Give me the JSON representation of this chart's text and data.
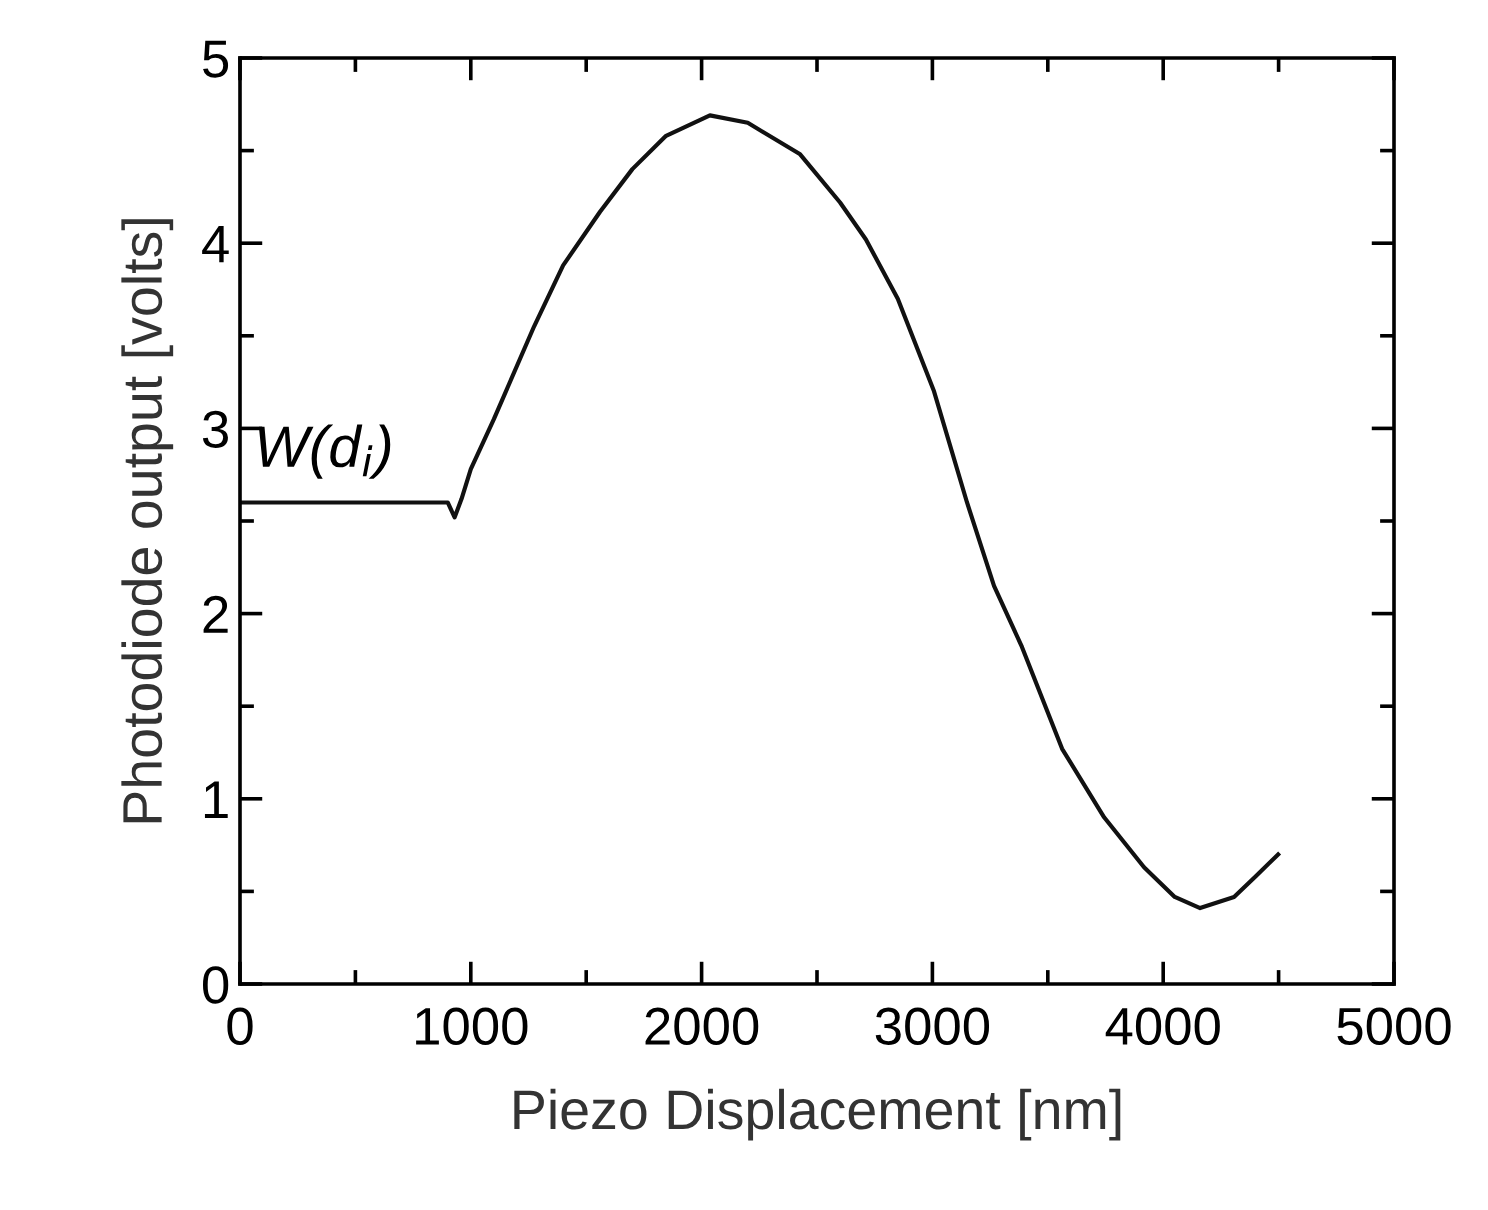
{
  "chart_data": {
    "type": "line",
    "xlabel": "Piezo Displacement [nm]",
    "ylabel": "Photodiode output [volts]",
    "x": [
      0,
      500,
      900,
      930,
      960,
      1000,
      1100,
      1274,
      1400,
      1560,
      1700,
      1846,
      2036,
      2200,
      2427,
      2600,
      2712,
      2850,
      3007,
      3150,
      3267,
      3388,
      3562,
      3744,
      3917,
      4050,
      4160,
      4307,
      4400,
      4498
    ],
    "series": [
      {
        "color": "#111111",
        "values": [
          2.6,
          2.6,
          2.6,
          2.52,
          2.62,
          2.78,
          3.05,
          3.55,
          3.88,
          4.17,
          4.4,
          4.58,
          4.69,
          4.65,
          4.48,
          4.22,
          4.02,
          3.7,
          3.2,
          2.6,
          2.15,
          1.82,
          1.27,
          0.9,
          0.63,
          0.47,
          0.41,
          0.47,
          0.58,
          0.7
        ]
      }
    ],
    "xlim": [
      0,
      5000
    ],
    "xticks": [
      0,
      1000,
      2000,
      3000,
      4000,
      5000
    ],
    "ylim": [
      0,
      5
    ],
    "yticks": [
      0,
      1,
      2,
      3,
      4,
      5
    ],
    "annotations": [
      "W(d$_{i}$)"
    ],
    "grid": false,
    "legend": false,
    "marker": "none",
    "line_style": "solid"
  }
}
